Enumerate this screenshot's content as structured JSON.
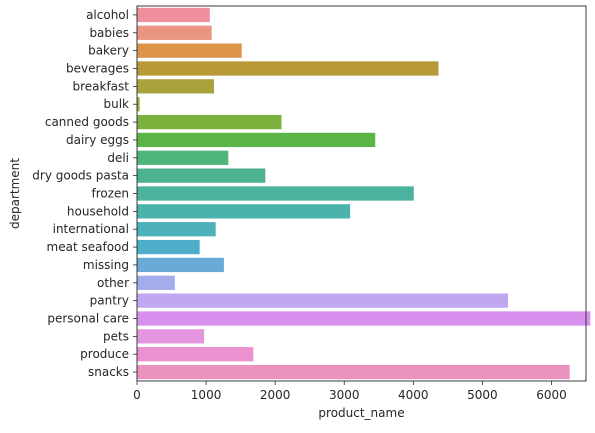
{
  "chart_data": {
    "type": "bar",
    "orientation": "horizontal",
    "xlabel": "product_name",
    "ylabel": "department",
    "xlim": [
      0,
      6500
    ],
    "xticks": [
      0,
      1000,
      2000,
      3000,
      4000,
      5000,
      6000
    ],
    "grid": false,
    "categories": [
      "alcohol",
      "babies",
      "bakery",
      "beverages",
      "breakfast",
      "bulk",
      "canned goods",
      "dairy eggs",
      "deli",
      "dry goods pasta",
      "frozen",
      "household",
      "international",
      "meat seafood",
      "missing",
      "other",
      "pantry",
      "personal care",
      "pets",
      "produce",
      "snacks"
    ],
    "values": [
      1054,
      1081,
      1516,
      4365,
      1115,
      38,
      2092,
      3449,
      1322,
      1858,
      4007,
      3085,
      1139,
      907,
      1258,
      548,
      5371,
      6563,
      972,
      1684,
      6264
    ],
    "colors": [
      "#f0909c",
      "#ea9683",
      "#db944a",
      "#b79a37",
      "#a9a33b",
      "#98a93b",
      "#7cb13d",
      "#5bb546",
      "#4cb67b",
      "#4cb290",
      "#4cb19e",
      "#4cb2ac",
      "#4db0bb",
      "#4eadc9",
      "#6aaad6",
      "#a3aded",
      "#c0a7f2",
      "#d790ed",
      "#e595e0",
      "#ec91d0",
      "#ec92c0"
    ]
  }
}
